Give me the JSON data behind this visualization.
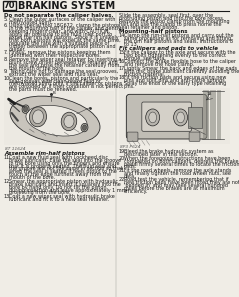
{
  "page_num": "70",
  "title": "BRAKING SYSTEM",
  "bg_color": "#f0ede6",
  "text_color": "#1a1a1a",
  "left_col": {
    "bold_heading": "Do not separate the caliper halves.",
    "items": [
      {
        "num": "5.",
        "text": "Clean the outer surfaces of the caliper with\nmethylated spirit."
      },
      {
        "num": "6.",
        "text": "Using special tool 18G672, clamp the pistons\nin the mounting half of the caliper and gently,\nkeeping fingers clear, and with CAUTION,\napply air pressure to the fluid inlet port to\nexpel the rim half pistons. Since it is unlikely\nthat both pistons will expel at the same time,\nregulate the rate with a suitable piece of\ntimber between the appropriate piston and\ncaliper."
      },
      {
        "num": "7.",
        "text": "Finally, remove the pistons keeping them\nidentified with their respective bores."
      },
      {
        "num": "8.",
        "text": "Remove the wiper seal retainer by inserting a\nblunt screw driver between the retainer and\nthe seal and prise the retainer carefully from\nthe mouth of the bore."
      },
      {
        "num": "9.",
        "text": "Taking care not to damage the seal grooves,\nextract the wiper seal and fluid seal."
      },
      {
        "num": "10.",
        "text": "Clean the bores, pistons and particularly the\nseal grooves with clean brake fluid or\nmethylated spirit only. If the caliper or pistons\nare corroded or if their condition is not perfect\nthe parts must be renewed."
      }
    ],
    "image_label": "8T 11624",
    "bold_heading2": "Assemble rim-half pistons",
    "items2": [
      {
        "num": "11.",
        "text": "Coat a new fluid seal with Lockheed disc\nbrake lubricant. Ease the seal into the groove\nin the bore using only the fingers and ensure\nthat it is properly seated. The fluid seal and\nthe groove are not the same in section so that\nwhen the seal is seated it feels proud to the\ntouch at the edge furthest away from the\nmouth of the bore."
      },
      {
        "num": "12.",
        "text": "Smear the appropriate piston with hydraulic\nbrake lubricant and insert it squarely into the\nbore by hand only. Do not tilt the piston\nduring insertion and leave approximately 1 mm\nprojecting from the bore."
      },
      {
        "num": "13.",
        "text": "Coat a new wiper seal with hydraulic brake\nlubricant and fit it to a new seal retainer."
      }
    ]
  },
  "right_col": {
    "intro_text": "Slide the assembly, seal first, over the\nprotruding piston and into the bore recess.\nRemove the piston clamp from the mounting\nhalf and use the clamp to press home the\nseal retainer and piston.",
    "bold_heading": "Mounting-half pistons",
    "items": [
      {
        "num": "14.",
        "text": "Clamp the rim-half pistons and carry out the\nsame procedure as for removing and fitting\nthe rim half pistons and seals, instructions 8\nto 13."
      }
    ],
    "bold_heading2": "Fit callipers and pads to vehicle",
    "items2": [
      {
        "num": "15.",
        "text": "Fit the caliper to the axle and secure with the\ntwo bolts tightening evenly to the correct\ntorque, see data."
      },
      {
        "num": "16.",
        "text": "Connect the brake flexible hose to the caliper\nand remove the hose clamp."
      },
      {
        "num": "17.",
        "text": "Lightly Smear the back and edges of the pads\nwith disc brake lubricant carefully avoiding the\nfriction material."
      },
      {
        "num": "18.",
        "text": "Fit the friction pads and secure using new\npins and split pins and anti-rattle springs.\nSplay the ends of the early type retaining\npins."
      }
    ],
    "image_label": "8P3 P624",
    "items3": [
      {
        "num": "19.",
        "text": "Bleed the brake hydraulic system as\ndescribed later in this section."
      },
      {
        "num": "20.",
        "text": "When the foregoing instructions have been\ncompleted on both calipers, depress the brake\npedal firmly several times to locate the friction\npads."
      },
      {
        "num": "21.",
        "text": "Fit the road wheels, remove the axle stands\nand finally tighten the road wheel nuts, see\ndata."
      },
      {
        "num": "22.",
        "text": "Road test the vehicle, remembering that if\nnew friction pads have been fitted they are not\n'bedded in' and may take several hundred\nmiles before the brakes are at maximum\nefficiency."
      }
    ]
  }
}
